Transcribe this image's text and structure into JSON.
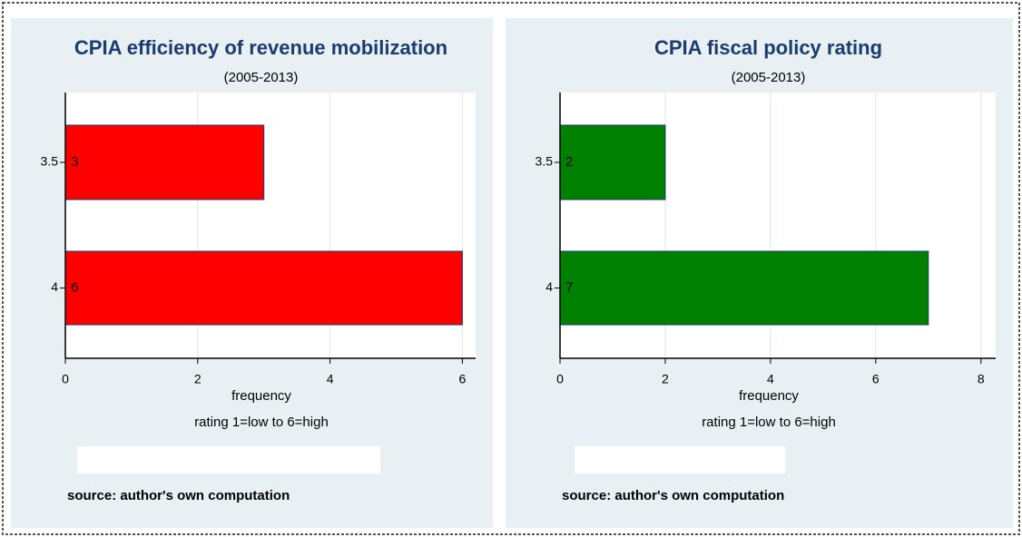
{
  "chart_data": [
    {
      "type": "bar",
      "orientation": "horizontal",
      "title": "CPIA efficiency of revenue mobilization",
      "subtitle": "(2005-2013)",
      "categories": [
        "3.5",
        "4"
      ],
      "values": [
        3,
        6
      ],
      "color": "#ff0000",
      "xlim": [
        0,
        6.2
      ],
      "xticks": [
        0,
        2,
        4,
        6
      ],
      "grid": true,
      "xlabel": "frequency",
      "note": "rating 1=low to 6=high",
      "source": "source: author's own computation"
    },
    {
      "type": "bar",
      "orientation": "horizontal",
      "title": "CPIA fiscal policy rating",
      "subtitle": "(2005-2013)",
      "categories": [
        "3.5",
        "4"
      ],
      "values": [
        2,
        7
      ],
      "color": "#008000",
      "xlim": [
        0,
        8.28
      ],
      "xticks": [
        0,
        2,
        4,
        6,
        8
      ],
      "grid": true,
      "xlabel": "frequency",
      "note": "rating 1=low to 6=high",
      "source": "source: author's own computation"
    }
  ]
}
